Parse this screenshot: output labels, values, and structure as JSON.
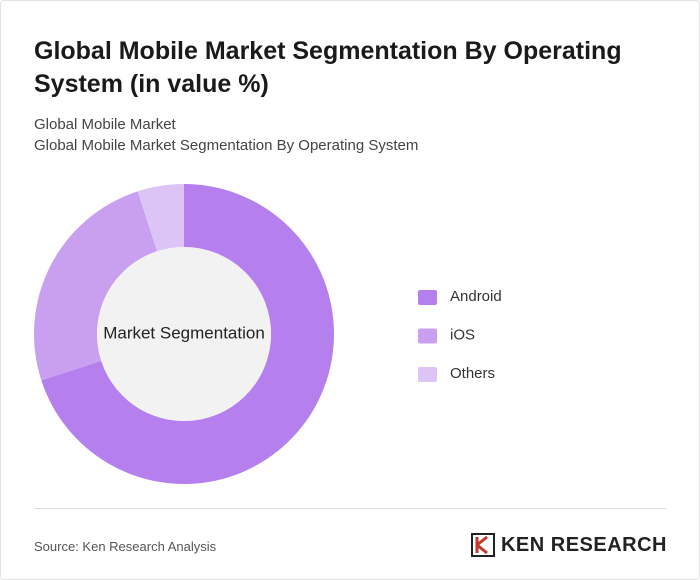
{
  "chart_data": {
    "type": "donut",
    "title": "Global Mobile Market Segmentation By Operating System (in value %)",
    "subtitle": "Global Mobile Market",
    "description": "Global Mobile Market Segmentation By Operating System",
    "center_label": "Market Segmentation",
    "categories": [
      "Android",
      "iOS",
      "Others"
    ],
    "values": [
      70,
      25,
      5
    ],
    "colors": [
      "#b580ed",
      "#c9a0f0",
      "#dcc4f6"
    ],
    "source": "Source: Ken Research Analysis",
    "brand": "KEN RESEARCH"
  }
}
